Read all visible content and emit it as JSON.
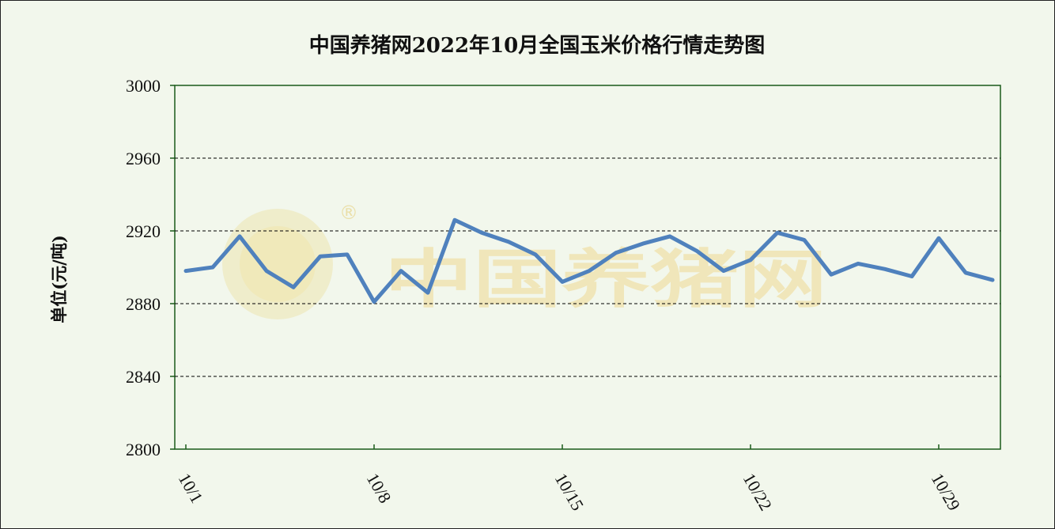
{
  "chart_data": {
    "type": "line",
    "title": "中国养猪网2022年10月全国玉米价格行情走势图",
    "ylabel": "单位(元/吨)",
    "xlabel": "",
    "ylim": [
      2800,
      3000
    ],
    "yticks": [
      2800,
      2840,
      2880,
      2920,
      2960,
      3000
    ],
    "xlim": [
      1,
      31
    ],
    "xtick_days": [
      1,
      8,
      15,
      22,
      29
    ],
    "xtick_labels": [
      "10/1",
      "10/8",
      "10/15",
      "10/22",
      "10/29"
    ],
    "grid": "horizontal dashed",
    "legend": "none",
    "color": "#4f81bd",
    "series": [
      {
        "x": [
          1,
          2,
          3,
          4,
          5,
          6,
          7,
          8,
          9,
          10,
          11,
          12,
          13,
          14,
          15,
          16,
          17,
          18,
          19,
          20,
          21,
          22,
          23,
          24,
          25,
          26,
          27,
          28,
          29,
          30,
          31
        ],
        "values": [
          2898,
          2900,
          2917,
          2898,
          2889,
          2906,
          2907,
          2881,
          2898,
          2886,
          2926,
          2919,
          2914,
          2907,
          2892,
          2898,
          2908,
          2913,
          2917,
          2909,
          2898,
          2904,
          2919,
          2915,
          2896,
          2902,
          2899,
          2895,
          2916,
          2897,
          2893
        ]
      }
    ]
  },
  "watermark": {
    "text": "中国养猪网",
    "registered_mark": "®"
  }
}
